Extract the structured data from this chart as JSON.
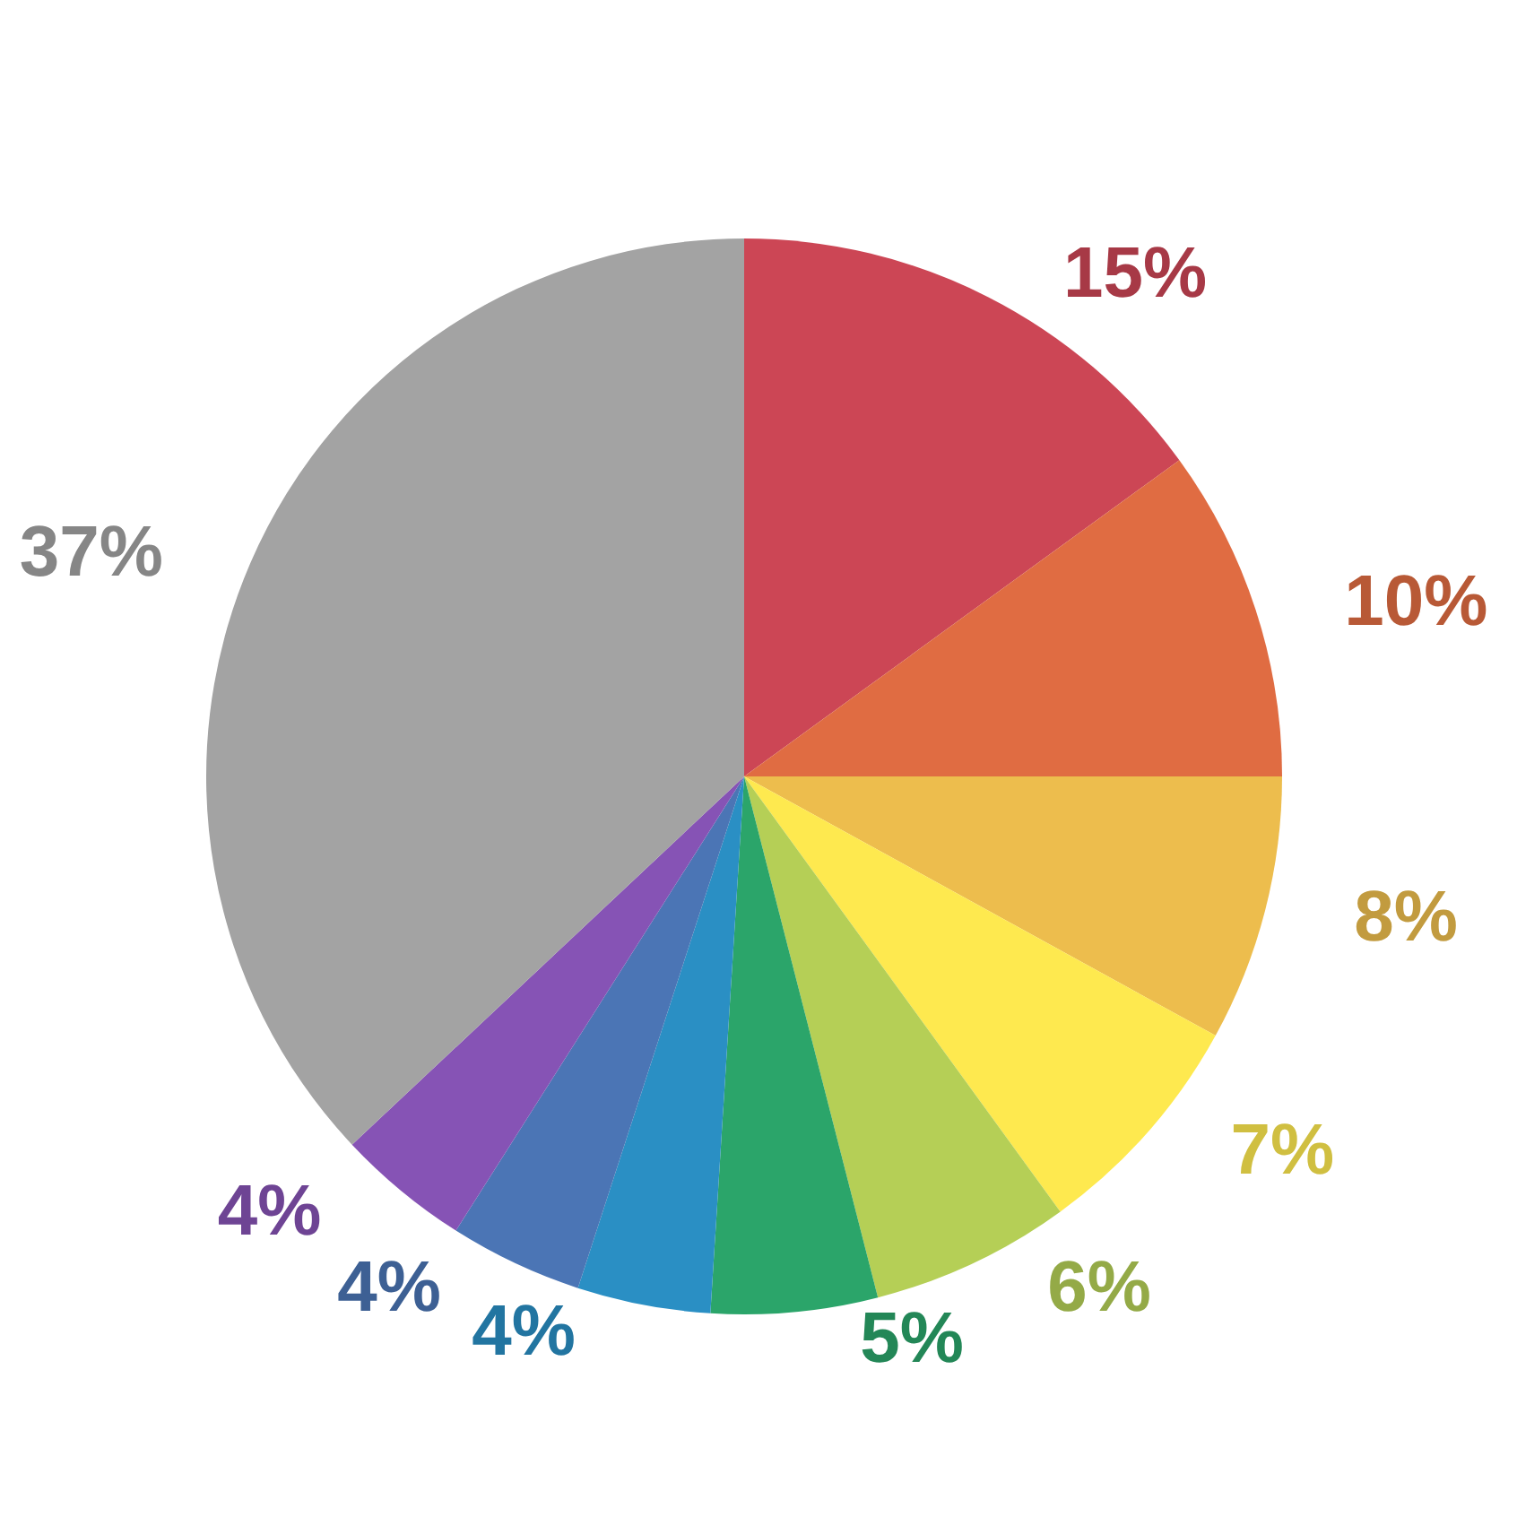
{
  "chart_data": {
    "type": "pie",
    "categories": [
      null,
      null,
      null,
      null,
      null,
      null,
      null,
      null,
      null,
      null
    ],
    "values": [
      15,
      10,
      8,
      7,
      6,
      5,
      4,
      4,
      4,
      37
    ],
    "value_labels": [
      "15%",
      "10%",
      "8%",
      "7%",
      "6%",
      "5%",
      "4%",
      "4%",
      "4%",
      "37%"
    ],
    "colors": [
      "#cc4655",
      "#e06c42",
      "#edbd4d",
      "#fee94f",
      "#b5cf56",
      "#2ba56a",
      "#2a8fc4",
      "#4b75b5",
      "#8653b5",
      "#a3a3a3"
    ]
  }
}
